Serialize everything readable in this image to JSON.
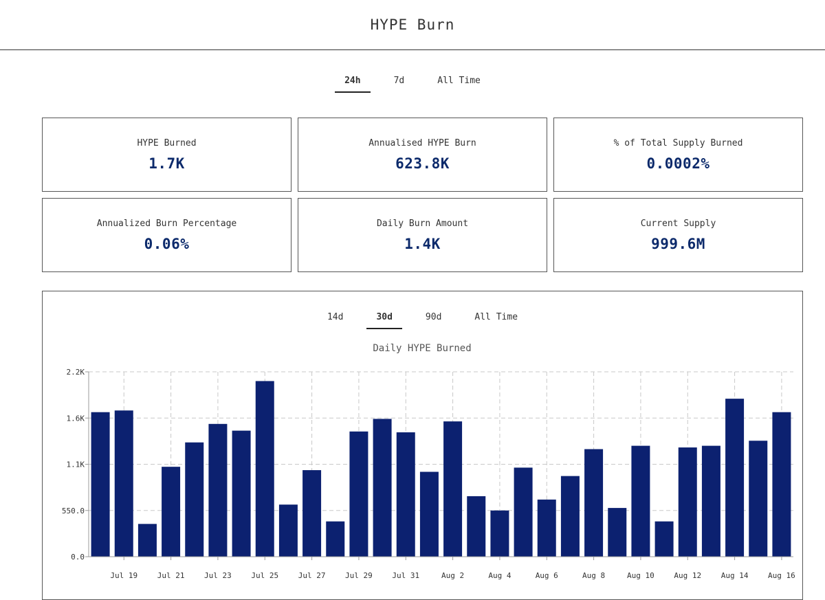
{
  "header": {
    "title": "HYPE Burn"
  },
  "period_tabs": {
    "items": [
      "24h",
      "7d",
      "All Time"
    ],
    "active": 0
  },
  "cards": [
    {
      "label": "HYPE Burned",
      "value": "1.7K"
    },
    {
      "label": "Annualised HYPE Burn",
      "value": "623.8K"
    },
    {
      "label": "% of Total Supply Burned",
      "value": "0.0002%"
    },
    {
      "label": "Annualized Burn Percentage",
      "value": "0.06%"
    },
    {
      "label": "Daily Burn Amount",
      "value": "1.4K"
    },
    {
      "label": "Current Supply",
      "value": "999.6M"
    }
  ],
  "range_tabs": {
    "items": [
      "14d",
      "30d",
      "90d",
      "All Time"
    ],
    "active": 1
  },
  "colors": {
    "bar": "#0c2170",
    "value_text": "#0c2a6b",
    "grid": "#c8c8c8"
  },
  "chart_data": {
    "type": "bar",
    "title": "Daily HYPE Burned",
    "xlabel": "",
    "ylabel": "",
    "ylim": [
      0,
      2200
    ],
    "yticks": [
      0,
      550,
      1100,
      1650,
      2200
    ],
    "ytick_labels": [
      "0.0",
      "550.0",
      "1.1K",
      "1.6K",
      "2.2K"
    ],
    "grid": true,
    "categories": [
      "Jul 18",
      "Jul 19",
      "Jul 20",
      "Jul 21",
      "Jul 22",
      "Jul 23",
      "Jul 24",
      "Jul 25",
      "Jul 26",
      "Jul 27",
      "Jul 28",
      "Jul 29",
      "Jul 30",
      "Jul 31",
      "Aug 1",
      "Aug 2",
      "Aug 3",
      "Aug 4",
      "Aug 5",
      "Aug 6",
      "Aug 7",
      "Aug 8",
      "Aug 9",
      "Aug 10",
      "Aug 11",
      "Aug 12",
      "Aug 13",
      "Aug 14",
      "Aug 15",
      "Aug 16"
    ],
    "tick_labels": [
      "Jul 19",
      "Jul 21",
      "Jul 23",
      "Jul 25",
      "Jul 27",
      "Jul 29",
      "Jul 31",
      "Aug 2",
      "Aug 4",
      "Aug 6",
      "Aug 8",
      "Aug 10",
      "Aug 12",
      "Aug 14",
      "Aug 16"
    ],
    "values": [
      1720,
      1740,
      390,
      1070,
      1360,
      1580,
      1500,
      2090,
      620,
      1030,
      420,
      1490,
      1640,
      1480,
      1010,
      1610,
      720,
      550,
      1060,
      680,
      960,
      1280,
      580,
      1320,
      420,
      1300,
      1320,
      1880,
      1380,
      1720
    ]
  }
}
